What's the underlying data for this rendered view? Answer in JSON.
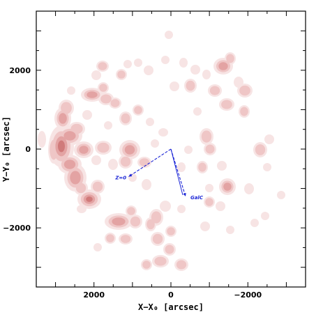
{
  "chart_data": {
    "type": "contour",
    "xlabel": "X−X₀ [arcsec]",
    "ylabel": "Y−Y₀ [arcsec]",
    "xlim": [
      3500,
      -3500
    ],
    "ylim": [
      -3500,
      3500
    ],
    "x_ticks": [
      {
        "value": 2000,
        "label": "2000"
      },
      {
        "value": 0,
        "label": "0"
      },
      {
        "value": -2000,
        "label": "−2000"
      }
    ],
    "y_ticks": [
      {
        "value": 2000,
        "label": "2000"
      },
      {
        "value": 0,
        "label": "0"
      },
      {
        "value": -2000,
        "label": "−2000"
      }
    ],
    "vectors": [
      {
        "label": "Z=0",
        "from": [
          0,
          0
        ],
        "to": [
          1100,
          -700
        ]
      },
      {
        "label": "GalC",
        "from": [
          0,
          0
        ],
        "to": [
          -380,
          -1200
        ]
      }
    ],
    "colors": {
      "contour": "#c85a5a",
      "vector": "#1a24d6",
      "axes": "#000000"
    },
    "grid": false,
    "legend": "none"
  }
}
